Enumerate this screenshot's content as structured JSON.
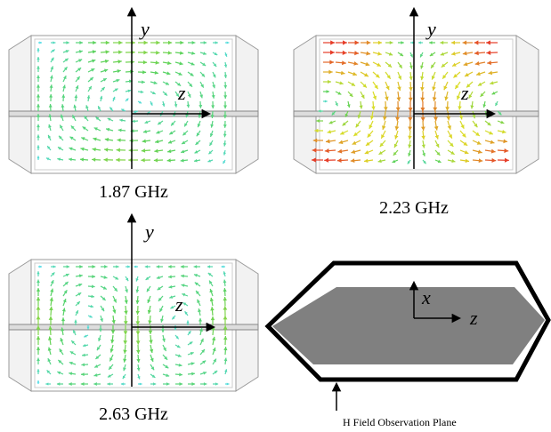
{
  "panels": [
    {
      "y_axis": "y",
      "z_axis": "z",
      "caption": "1.87 GHz"
    },
    {
      "y_axis": "y",
      "z_axis": "z",
      "caption": "2.23 GHz"
    },
    {
      "y_axis": "y",
      "z_axis": "z",
      "caption": "2.63 GHz"
    }
  ],
  "schematic": {
    "x_axis": "x",
    "z_axis": "z",
    "annotation": "H Field Observation Plane"
  }
}
